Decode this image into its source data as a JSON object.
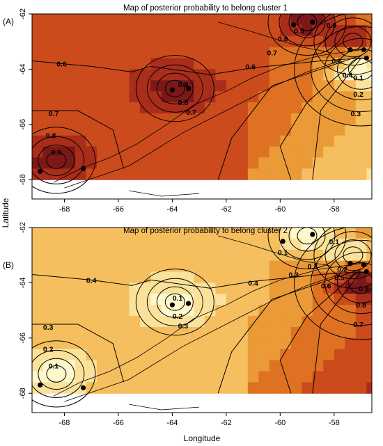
{
  "figure": {
    "xlabel": "Longitude",
    "ylabel": "Latitude"
  },
  "chart_data": [
    {
      "type": "heatmap",
      "panel_label": "(A)",
      "title": "Map of posterior probability to belong cluster 1",
      "xlim": [
        -69.2,
        -56.6
      ],
      "ylim": [
        -68.7,
        -62
      ],
      "data_ylim": [
        -68,
        -62
      ],
      "x_ticks": [
        "-68",
        "-66",
        "-64",
        "-62",
        "-60",
        "-58"
      ],
      "y_ticks": [
        "-62",
        "-64",
        "-66",
        "-68"
      ],
      "x_tick_values": [
        -68,
        -66,
        -64,
        -62,
        -60,
        -58
      ],
      "y_tick_values": [
        -62,
        -64,
        -66,
        -68
      ],
      "grid": false,
      "colormap": [
        "#fff8cc",
        "#fbe29a",
        "#f5be5e",
        "#eb9a38",
        "#df7222",
        "#cb4b1c",
        "#a92d1a",
        "#7c1818"
      ],
      "contour_labels": [
        {
          "text": "0.6",
          "lon": -68.1,
          "lat": -63.8
        },
        {
          "text": "0.6",
          "lon": -61.1,
          "lat": -63.9
        },
        {
          "text": "0.7",
          "lon": -60.3,
          "lat": -63.4
        },
        {
          "text": "0.8",
          "lon": -59.9,
          "lat": -62.9
        },
        {
          "text": "0.9",
          "lon": -59.3,
          "lat": -62.6
        },
        {
          "text": "0.9",
          "lon": -58.1,
          "lat": -62.4
        },
        {
          "text": "0.5",
          "lon": -57.9,
          "lat": -63.7
        },
        {
          "text": "0.4",
          "lon": -57.5,
          "lat": -64.2
        },
        {
          "text": "0.1",
          "lon": -57.1,
          "lat": -64.3
        },
        {
          "text": "0.2",
          "lon": -57.1,
          "lat": -64.9
        },
        {
          "text": "0.3",
          "lon": -57.2,
          "lat": -65.6
        },
        {
          "text": "0.9",
          "lon": -63.6,
          "lat": -64.55
        },
        {
          "text": "0.8",
          "lon": -63.6,
          "lat": -65.2
        },
        {
          "text": "0.7",
          "lon": -63.3,
          "lat": -65.55
        },
        {
          "text": "0.7",
          "lon": -68.4,
          "lat": -65.6
        },
        {
          "text": "0.8",
          "lon": -68.5,
          "lat": -66.4
        },
        {
          "text": "0.9",
          "lon": -68.3,
          "lat": -67.0
        }
      ],
      "points": [
        {
          "lon": -68.9,
          "lat": -67.7
        },
        {
          "lon": -67.3,
          "lat": -67.6
        },
        {
          "lon": -64.0,
          "lat": -64.75
        },
        {
          "lon": -63.4,
          "lat": -64.7
        },
        {
          "lon": -59.5,
          "lat": -62.4
        },
        {
          "lon": -58.8,
          "lat": -62.3
        },
        {
          "lon": -57.4,
          "lat": -63.3
        },
        {
          "lon": -56.9,
          "lat": -63.3
        },
        {
          "lon": -56.8,
          "lat": -63.6
        }
      ],
      "hotspots": [
        {
          "lon": -68.3,
          "lat": -67.3,
          "value": 0.95
        },
        {
          "lon": -63.9,
          "lat": -64.7,
          "value": 0.95
        },
        {
          "lon": -59.0,
          "lat": -62.3,
          "value": 0.95
        },
        {
          "lon": -57.3,
          "lat": -63.0,
          "value": 0.95
        },
        {
          "lon": -57.0,
          "lat": -64.0,
          "value": 0.05
        }
      ]
    },
    {
      "type": "heatmap",
      "panel_label": "(B)",
      "title": "Map of posterior probability to belong cluster 2",
      "xlim": [
        -69.2,
        -56.6
      ],
      "ylim": [
        -68.7,
        -62
      ],
      "data_ylim": [
        -68,
        -62
      ],
      "x_ticks": [
        "-68",
        "-66",
        "-64",
        "-62",
        "-60",
        "-58"
      ],
      "y_ticks": [
        "-62",
        "-64",
        "-66",
        "-68"
      ],
      "x_tick_values": [
        -68,
        -66,
        -64,
        -62,
        -60,
        -58
      ],
      "y_tick_values": [
        -62,
        -64,
        -66,
        -68
      ],
      "grid": false,
      "colormap": [
        "#fff8cc",
        "#fbe29a",
        "#f5be5e",
        "#eb9a38",
        "#df7222",
        "#cb4b1c",
        "#a92d1a",
        "#7c1818"
      ],
      "contour_labels": [
        {
          "text": "0.4",
          "lon": -67.0,
          "lat": -63.9
        },
        {
          "text": "0.1",
          "lon": -58.0,
          "lat": -62.5
        },
        {
          "text": "0.1",
          "lon": -59.9,
          "lat": -62.9
        },
        {
          "text": "0.2",
          "lon": -58.8,
          "lat": -63.4
        },
        {
          "text": "0.3",
          "lon": -59.5,
          "lat": -63.7
        },
        {
          "text": "0.2",
          "lon": -57.7,
          "lat": -63.5
        },
        {
          "text": "0.4",
          "lon": -61.0,
          "lat": -64.0
        },
        {
          "text": "0.5",
          "lon": -57.8,
          "lat": -63.8
        },
        {
          "text": "0.6",
          "lon": -58.3,
          "lat": -64.1
        },
        {
          "text": "0.9",
          "lon": -56.9,
          "lat": -64.2
        },
        {
          "text": "0.8",
          "lon": -57.0,
          "lat": -64.8
        },
        {
          "text": "0.7",
          "lon": -57.1,
          "lat": -65.5
        },
        {
          "text": "0.1",
          "lon": -63.8,
          "lat": -64.55
        },
        {
          "text": "0.2",
          "lon": -63.8,
          "lat": -65.2
        },
        {
          "text": "0.3",
          "lon": -63.6,
          "lat": -65.55
        },
        {
          "text": "0.3",
          "lon": -68.6,
          "lat": -65.6
        },
        {
          "text": "0.2",
          "lon": -68.6,
          "lat": -66.4
        },
        {
          "text": "0.1",
          "lon": -68.4,
          "lat": -67.0
        }
      ],
      "points": [
        {
          "lon": -68.9,
          "lat": -67.7
        },
        {
          "lon": -67.3,
          "lat": -67.8
        },
        {
          "lon": -64.0,
          "lat": -64.8
        },
        {
          "lon": -63.4,
          "lat": -64.75
        },
        {
          "lon": -59.9,
          "lat": -62.5
        },
        {
          "lon": -58.8,
          "lat": -62.25
        },
        {
          "lon": -57.4,
          "lat": -63.3
        },
        {
          "lon": -56.9,
          "lat": -63.35
        },
        {
          "lon": -56.8,
          "lat": -63.6
        }
      ],
      "hotspots": [
        {
          "lon": -68.3,
          "lat": -67.3,
          "value": 0.05
        },
        {
          "lon": -63.9,
          "lat": -64.7,
          "value": 0.05
        },
        {
          "lon": -59.0,
          "lat": -62.3,
          "value": 0.05
        },
        {
          "lon": -57.3,
          "lat": -63.0,
          "value": 0.05
        },
        {
          "lon": -57.0,
          "lat": -64.0,
          "value": 0.95
        }
      ]
    }
  ]
}
